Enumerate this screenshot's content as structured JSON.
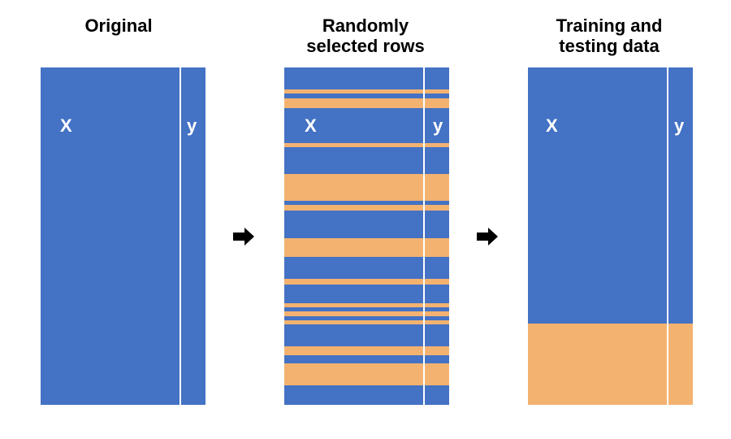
{
  "titles": {
    "original": "Original",
    "random_l1": "Randomly",
    "random_l2": "selected rows",
    "split_l1": "Training and",
    "split_l2": "testing data"
  },
  "labels": {
    "x": "X",
    "y": "y"
  },
  "colors": {
    "blue": "#4472C4",
    "orange": "#F4B270",
    "arrow": "#000000"
  },
  "panels": {
    "original": {
      "segments": [
        {
          "color": "blue",
          "fraction": 1.0
        }
      ]
    },
    "random": {
      "segments": [
        {
          "color": "blue",
          "fraction": 0.063
        },
        {
          "color": "orange",
          "fraction": 0.012
        },
        {
          "color": "blue",
          "fraction": 0.012
        },
        {
          "color": "orange",
          "fraction": 0.029
        },
        {
          "color": "blue",
          "fraction": 0.099
        },
        {
          "color": "orange",
          "fraction": 0.012
        },
        {
          "color": "blue",
          "fraction": 0.077
        },
        {
          "color": "orange",
          "fraction": 0.075
        },
        {
          "color": "blue",
          "fraction": 0.012
        },
        {
          "color": "orange",
          "fraction": 0.017
        },
        {
          "color": "blue",
          "fraction": 0.077
        },
        {
          "color": "orange",
          "fraction": 0.053
        },
        {
          "color": "blue",
          "fraction": 0.063
        },
        {
          "color": "orange",
          "fraction": 0.017
        },
        {
          "color": "blue",
          "fraction": 0.053
        },
        {
          "color": "orange",
          "fraction": 0.012
        },
        {
          "color": "blue",
          "fraction": 0.012
        },
        {
          "color": "orange",
          "fraction": 0.012
        },
        {
          "color": "blue",
          "fraction": 0.012
        },
        {
          "color": "orange",
          "fraction": 0.012
        },
        {
          "color": "blue",
          "fraction": 0.063
        },
        {
          "color": "orange",
          "fraction": 0.024
        },
        {
          "color": "blue",
          "fraction": 0.024
        },
        {
          "color": "orange",
          "fraction": 0.063
        },
        {
          "color": "blue",
          "fraction": 0.055
        }
      ]
    },
    "split": {
      "segments": [
        {
          "color": "blue",
          "fraction": 0.76
        },
        {
          "color": "orange",
          "fraction": 0.24
        }
      ]
    }
  }
}
